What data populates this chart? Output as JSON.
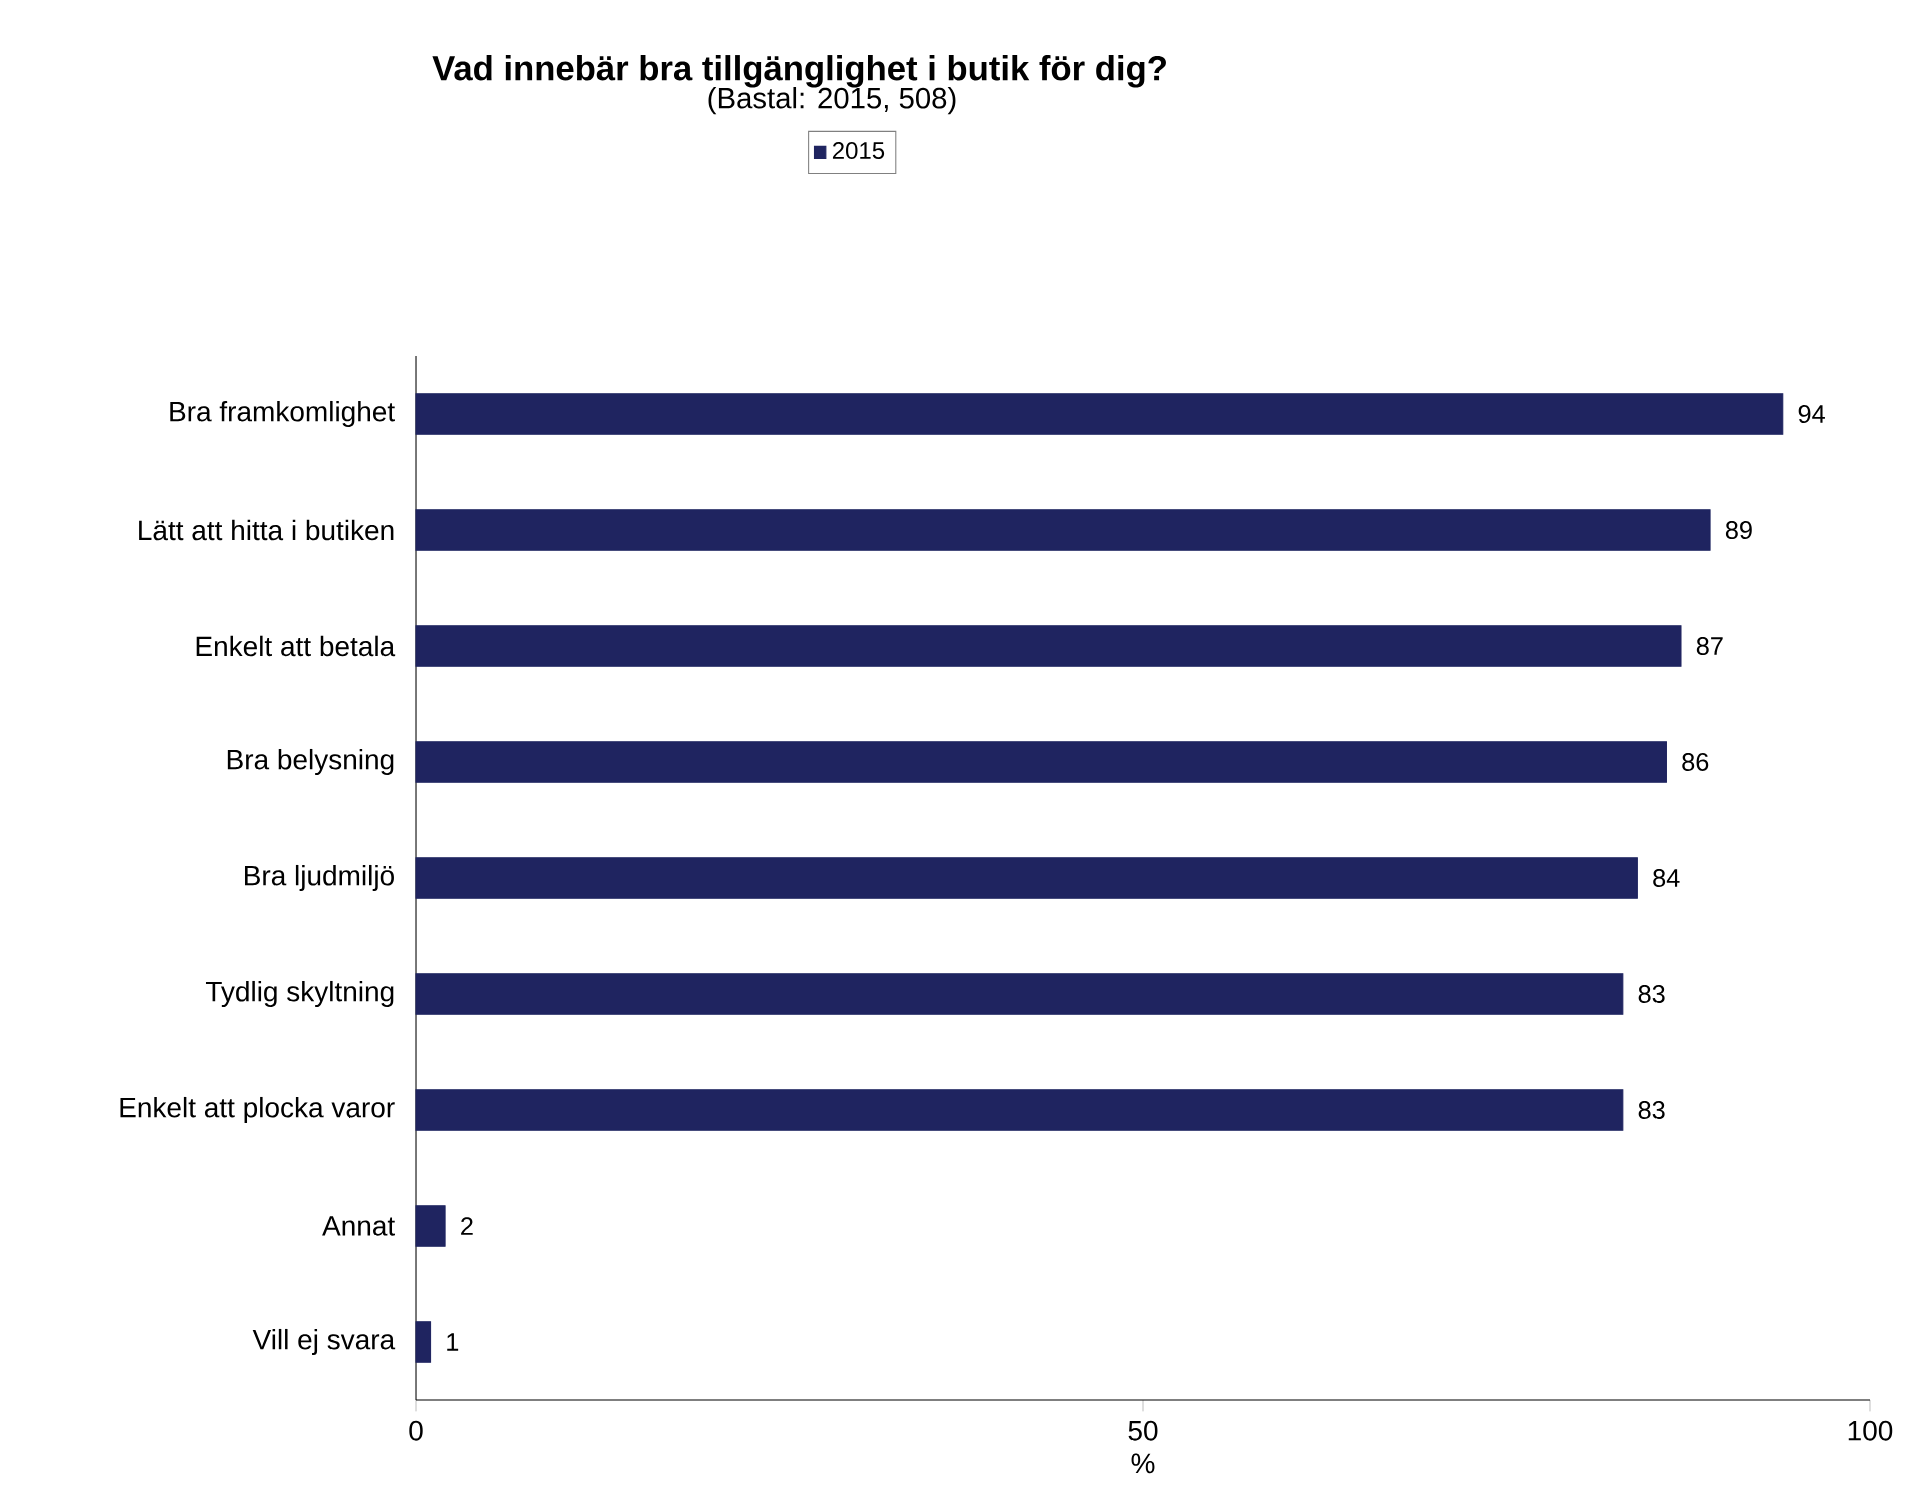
{
  "chart_data": {
    "type": "bar",
    "orientation": "horizontal",
    "title": "Vad innebär bra tillgänglighet i butik för dig?",
    "subtitle": "(Bastal: 2015, 508)",
    "categories": [
      "Bra framkomlighet",
      "Lätt att hitta i butiken",
      "Enkelt att betala",
      "Bra belysning",
      "Bra ljudmiljö",
      "Tydlig skyltning",
      "Enkelt att plocka varor",
      "Annat",
      "Vill ej svara"
    ],
    "series": [
      {
        "name": "2015",
        "color": "#1f2460",
        "values": [
          94,
          89,
          87,
          86,
          84,
          83,
          83,
          2,
          1
        ]
      }
    ],
    "xlabel": "%",
    "xlim": [
      0,
      100
    ],
    "xticks": [
      0,
      50,
      100
    ],
    "data_labels": true,
    "legend": "top",
    "grid": false
  }
}
